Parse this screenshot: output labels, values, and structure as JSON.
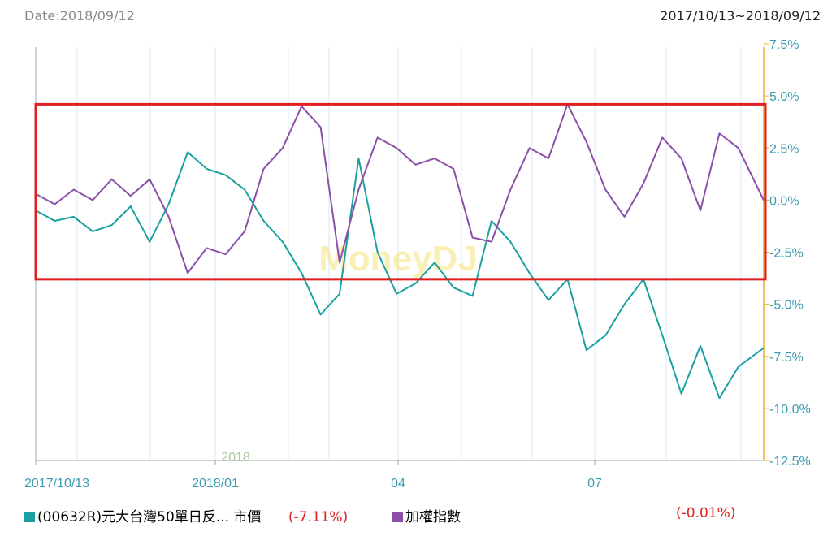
{
  "header": {
    "date_label": "Date:2018/09/12",
    "range_label": "2017/10/13~2018/09/12"
  },
  "legend": {
    "series1_name": "(00632R)元大台灣50單日反... 市價",
    "series1_change": "(-7.11%)",
    "series2_name": "加權指數",
    "series2_change": "(-0.01%)"
  },
  "watermark": "MoneyDJ",
  "colors": {
    "series1": "#1aa0a0",
    "series2": "#8b4fa8",
    "grid": "#d6eaf5",
    "right_axis": "#f0b030",
    "axis_text": "#3c9bb0",
    "highlight_box": "#e02020",
    "negative_text": "#e02020"
  },
  "chart_data": {
    "type": "line",
    "title": "",
    "xlabel": "",
    "ylabel": "",
    "x_tick_labels": [
      "2017/10/13",
      "2018/01",
      "04",
      "07"
    ],
    "year_label": "2018",
    "y_tick_labels": [
      "7.5%",
      "5.0%",
      "2.5%",
      "0.0%",
      "-2.5%",
      "-5.0%",
      "-7.5%",
      "-10.0%",
      "-12.5%"
    ],
    "ylim": [
      -12.5,
      7.5
    ],
    "xlim": [
      0,
      230
    ],
    "grid": true,
    "legend_position": "bottom",
    "y_axis_side": "right",
    "highlight_box_y_range": [
      4.6,
      -3.8
    ],
    "series": [
      {
        "name": "(00632R)元大台灣50單日反... 市價",
        "color": "#1aa0a0",
        "x": [
          0,
          6,
          12,
          18,
          24,
          30,
          36,
          42,
          48,
          54,
          60,
          66,
          72,
          78,
          84,
          90,
          96,
          102,
          108,
          114,
          120,
          126,
          132,
          138,
          144,
          150,
          156,
          162,
          168,
          174,
          180,
          186,
          192,
          198,
          204,
          210,
          216,
          222,
          230
        ],
        "values": [
          -0.5,
          -1.0,
          -0.8,
          -1.5,
          -1.2,
          -0.3,
          -2.0,
          -0.2,
          2.3,
          1.5,
          1.2,
          0.5,
          -1.0,
          -2.0,
          -3.5,
          -5.5,
          -4.5,
          2.0,
          -2.5,
          -4.5,
          -4.0,
          -3.0,
          -4.2,
          -4.6,
          -1.0,
          -2.0,
          -3.5,
          -4.8,
          -3.8,
          -7.2,
          -6.5,
          -5.0,
          -3.8,
          -6.5,
          -9.3,
          -7.0,
          -9.5,
          -8.0,
          -7.1
        ]
      },
      {
        "name": "加權指數",
        "color": "#8b4fa8",
        "x": [
          0,
          6,
          12,
          18,
          24,
          30,
          36,
          42,
          48,
          54,
          60,
          66,
          72,
          78,
          84,
          90,
          96,
          102,
          108,
          114,
          120,
          126,
          132,
          138,
          144,
          150,
          156,
          162,
          168,
          174,
          180,
          186,
          192,
          198,
          204,
          210,
          216,
          222,
          230
        ],
        "values": [
          0.3,
          -0.2,
          0.5,
          0.0,
          1.0,
          0.2,
          1.0,
          -0.8,
          -3.5,
          -2.3,
          -2.6,
          -1.5,
          1.5,
          2.5,
          4.5,
          3.5,
          -3.0,
          0.5,
          3.0,
          2.5,
          1.7,
          2.0,
          1.5,
          -1.8,
          -2.0,
          0.5,
          2.5,
          2.0,
          4.6,
          2.8,
          0.5,
          -0.8,
          0.8,
          3.0,
          2.0,
          -0.5,
          3.2,
          2.5,
          -0.01
        ]
      }
    ]
  }
}
